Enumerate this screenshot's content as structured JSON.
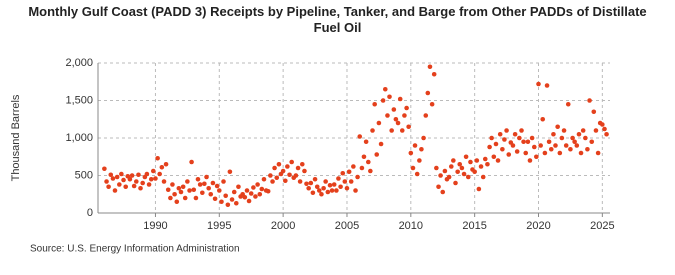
{
  "chart_data": {
    "type": "scatter",
    "title": "Monthly Gulf Coast (PADD 3) Receipts by Pipeline, Tanker, and Barge from Other PADDs of Distillate Fuel Oil",
    "y_label": "Thousand Barrels",
    "source": "Source: U.S. Energy Information Administration",
    "xlim": [
      1985.5,
      2025.6
    ],
    "xticks": [
      1990,
      1995,
      2000,
      2005,
      2010,
      2015,
      2020,
      2025
    ],
    "ylim": [
      0,
      2000
    ],
    "yticks": [
      0,
      500,
      {
        "value": 1000,
        "label": "1,000"
      },
      {
        "value": 1500,
        "label": "1,500"
      },
      {
        "value": 2000,
        "label": "2,000"
      }
    ],
    "grid": true,
    "series": [
      {
        "name": "Receipts",
        "color": "#e4401c",
        "x": [
          1986,
          1986.17,
          1986.33,
          1986.5,
          1986.67,
          1986.83,
          1987,
          1987.17,
          1987.33,
          1987.5,
          1987.67,
          1987.83,
          1988,
          1988.17,
          1988.33,
          1988.5,
          1988.67,
          1988.83,
          1989,
          1989.17,
          1989.33,
          1989.5,
          1989.67,
          1989.83,
          1990,
          1990.17,
          1990.33,
          1990.5,
          1990.67,
          1990.83,
          1991,
          1991.17,
          1991.33,
          1991.5,
          1991.67,
          1991.83,
          1992,
          1992.17,
          1992.33,
          1992.5,
          1992.67,
          1992.83,
          1993,
          1993.17,
          1993.33,
          1993.5,
          1993.67,
          1993.83,
          1994,
          1994.17,
          1994.33,
          1994.5,
          1994.67,
          1994.83,
          1995,
          1995.17,
          1995.33,
          1995.5,
          1995.67,
          1995.83,
          1996,
          1996.17,
          1996.33,
          1996.5,
          1996.67,
          1996.83,
          1997,
          1997.17,
          1997.33,
          1997.5,
          1997.67,
          1997.83,
          1998,
          1998.17,
          1998.33,
          1998.5,
          1998.67,
          1998.83,
          1999,
          1999.17,
          1999.33,
          1999.5,
          1999.67,
          1999.83,
          2000,
          2000.17,
          2000.33,
          2000.5,
          2000.67,
          2000.83,
          2001,
          2001.17,
          2001.33,
          2001.5,
          2001.67,
          2001.83,
          2002,
          2002.17,
          2002.33,
          2002.5,
          2002.67,
          2002.83,
          2003,
          2003.17,
          2003.33,
          2003.5,
          2003.67,
          2003.83,
          2004,
          2004.17,
          2004.33,
          2004.5,
          2004.67,
          2004.83,
          2005,
          2005.17,
          2005.33,
          2005.5,
          2005.67,
          2005.83,
          2006,
          2006.17,
          2006.33,
          2006.5,
          2006.67,
          2006.83,
          2007,
          2007.17,
          2007.33,
          2007.5,
          2007.67,
          2007.83,
          2008,
          2008.17,
          2008.33,
          2008.5,
          2008.67,
          2008.83,
          2009,
          2009.17,
          2009.33,
          2009.5,
          2009.67,
          2009.83,
          2010,
          2010.17,
          2010.33,
          2010.5,
          2010.67,
          2010.83,
          2011,
          2011.17,
          2011.33,
          2011.5,
          2011.67,
          2011.83,
          2012,
          2012.17,
          2012.33,
          2012.5,
          2012.67,
          2012.83,
          2013,
          2013.17,
          2013.33,
          2013.5,
          2013.67,
          2013.83,
          2014,
          2014.17,
          2014.33,
          2014.5,
          2014.67,
          2014.83,
          2015,
          2015.17,
          2015.33,
          2015.5,
          2015.67,
          2015.83,
          2016,
          2016.17,
          2016.33,
          2016.5,
          2016.67,
          2016.83,
          2017,
          2017.17,
          2017.33,
          2017.5,
          2017.67,
          2017.83,
          2018,
          2018.17,
          2018.33,
          2018.5,
          2018.67,
          2018.83,
          2019,
          2019.17,
          2019.33,
          2019.5,
          2019.67,
          2019.83,
          2020,
          2020.17,
          2020.33,
          2020.5,
          2020.67,
          2020.83,
          2021,
          2021.17,
          2021.33,
          2021.5,
          2021.67,
          2021.83,
          2022,
          2022.17,
          2022.33,
          2022.5,
          2022.67,
          2022.83,
          2023,
          2023.17,
          2023.33,
          2023.5,
          2023.67,
          2023.83,
          2024,
          2024.17,
          2024.33,
          2024.5,
          2024.67,
          2024.83,
          2025,
          2025.17,
          2025.33
        ],
        "values": [
          590,
          420,
          350,
          510,
          460,
          300,
          480,
          380,
          520,
          440,
          350,
          490,
          450,
          500,
          360,
          420,
          510,
          330,
          400,
          480,
          520,
          380,
          450,
          560,
          460,
          730,
          520,
          610,
          420,
          650,
          310,
          200,
          380,
          250,
          150,
          330,
          280,
          350,
          200,
          420,
          300,
          680,
          310,
          200,
          450,
          380,
          270,
          390,
          480,
          330,
          250,
          400,
          190,
          360,
          300,
          150,
          420,
          230,
          110,
          550,
          180,
          280,
          130,
          350,
          220,
          250,
          210,
          300,
          160,
          260,
          340,
          220,
          380,
          250,
          320,
          450,
          300,
          290,
          500,
          420,
          600,
          470,
          650,
          520,
          560,
          430,
          620,
          510,
          680,
          470,
          500,
          600,
          420,
          650,
          560,
          390,
          330,
          400,
          270,
          450,
          350,
          300,
          250,
          330,
          420,
          280,
          370,
          300,
          380,
          300,
          460,
          350,
          530,
          420,
          330,
          550,
          420,
          620,
          300,
          480,
          1020,
          600,
          750,
          950,
          680,
          560,
          1100,
          1450,
          780,
          1200,
          920,
          1500,
          1650,
          1300,
          1550,
          1100,
          1380,
          1250,
          1200,
          1520,
          1100,
          1300,
          1400,
          1150,
          800,
          600,
          900,
          520,
          700,
          850,
          1000,
          1300,
          1600,
          1950,
          1450,
          1850,
          600,
          350,
          500,
          280,
          560,
          450,
          480,
          620,
          700,
          400,
          550,
          650,
          600,
          520,
          750,
          480,
          680,
          580,
          550,
          700,
          320,
          620,
          480,
          720,
          650,
          880,
          1000,
          750,
          920,
          700,
          1050,
          850,
          980,
          1100,
          780,
          940,
          900,
          1050,
          820,
          1000,
          1100,
          950,
          800,
          950,
          700,
          1000,
          880,
          750,
          1720,
          900,
          1250,
          800,
          1700,
          950,
          850,
          1050,
          900,
          1150,
          800,
          1000,
          1100,
          900,
          1450,
          850,
          1000,
          950,
          900,
          1050,
          800,
          1100,
          1000,
          850,
          1500,
          950,
          1350,
          1100,
          800,
          1200,
          1180,
          1120,
          1050
        ]
      }
    ]
  }
}
